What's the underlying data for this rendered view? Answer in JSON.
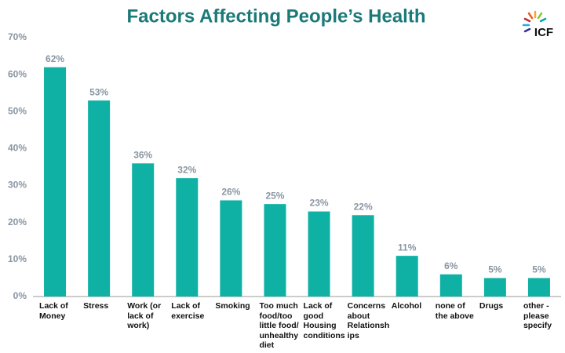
{
  "chart_data": {
    "type": "bar",
    "title": "Factors Affecting People’s Health",
    "logo": "ICF",
    "categories": [
      "Lack of Money",
      "Stress",
      "Work (or lack of work)",
      "Lack of exercise",
      "Smoking",
      "Too much food/too little food/ unhealthy diet",
      "Lack of good Housing conditions",
      "Concerns about Relationships",
      "Alcohol",
      "none of the above",
      "Drugs",
      "other - please specify"
    ],
    "values": [
      62,
      53,
      36,
      32,
      26,
      25,
      23,
      22,
      11,
      6,
      5,
      5
    ],
    "value_labels": [
      "62%",
      "53%",
      "36%",
      "32%",
      "26%",
      "25%",
      "23%",
      "22%",
      "11%",
      "6%",
      "5%",
      "5%"
    ],
    "color": "#0fb1a5",
    "ylim": [
      0,
      70
    ],
    "yticks": [
      {
        "value": 0,
        "label": "0%"
      },
      {
        "value": 10,
        "label": "10%"
      },
      {
        "value": 20,
        "label": "20%"
      },
      {
        "value": 30,
        "label": "30%"
      },
      {
        "value": 40,
        "label": "40%"
      },
      {
        "value": 50,
        "label": "50%"
      },
      {
        "value": 60,
        "label": "60%"
      },
      {
        "value": 70,
        "label": "70%"
      }
    ],
    "grid": false
  }
}
